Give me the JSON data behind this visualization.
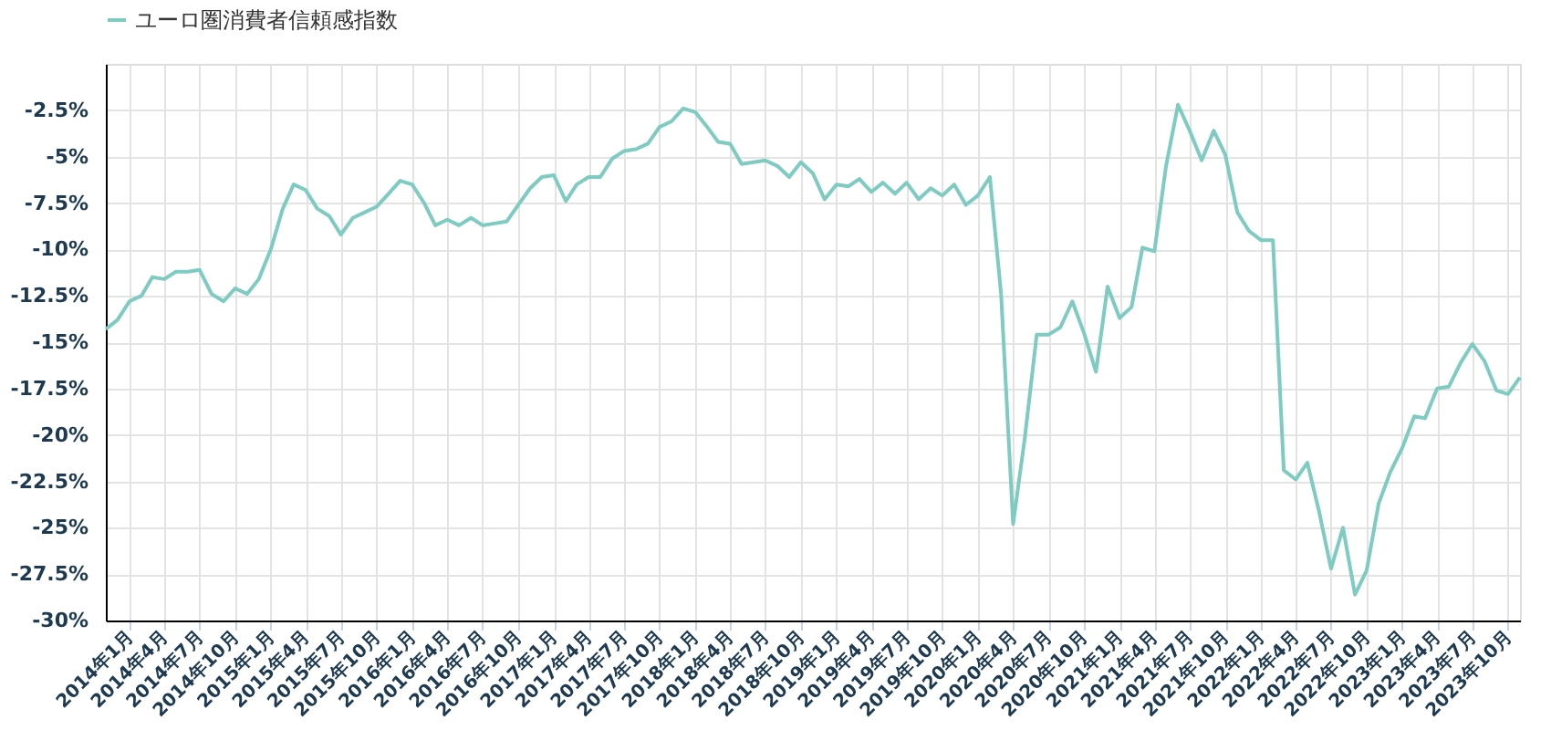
{
  "chart_data": {
    "type": "line",
    "x": [
      "2013-11",
      "2013-12",
      "2014-01",
      "2014-02",
      "2014-03",
      "2014-04",
      "2014-05",
      "2014-06",
      "2014-07",
      "2014-08",
      "2014-09",
      "2014-10",
      "2014-11",
      "2014-12",
      "2015-01",
      "2015-02",
      "2015-03",
      "2015-04",
      "2015-05",
      "2015-06",
      "2015-07",
      "2015-08",
      "2015-09",
      "2015-10",
      "2015-11",
      "2015-12",
      "2016-01",
      "2016-02",
      "2016-03",
      "2016-04",
      "2016-05",
      "2016-06",
      "2016-07",
      "2016-08",
      "2016-09",
      "2016-10",
      "2016-11",
      "2016-12",
      "2017-01",
      "2017-02",
      "2017-03",
      "2017-04",
      "2017-05",
      "2017-06",
      "2017-07",
      "2017-08",
      "2017-09",
      "2017-10",
      "2017-11",
      "2017-12",
      "2018-01",
      "2018-02",
      "2018-03",
      "2018-04",
      "2018-05",
      "2018-06",
      "2018-07",
      "2018-08",
      "2018-09",
      "2018-10",
      "2018-11",
      "2018-12",
      "2019-01",
      "2019-02",
      "2019-03",
      "2019-04",
      "2019-05",
      "2019-06",
      "2019-07",
      "2019-08",
      "2019-09",
      "2019-10",
      "2019-11",
      "2019-12",
      "2020-01",
      "2020-02",
      "2020-03",
      "2020-04",
      "2020-05",
      "2020-06",
      "2020-07",
      "2020-08",
      "2020-09",
      "2020-10",
      "2020-11",
      "2020-12",
      "2021-01",
      "2021-02",
      "2021-03",
      "2021-04",
      "2021-05",
      "2021-06",
      "2021-07",
      "2021-08",
      "2021-09",
      "2021-10",
      "2021-11",
      "2021-12",
      "2022-01",
      "2022-02",
      "2022-03",
      "2022-04",
      "2022-05",
      "2022-06",
      "2022-07",
      "2022-08",
      "2022-09",
      "2022-10",
      "2022-11",
      "2022-12",
      "2023-01",
      "2023-02",
      "2023-03",
      "2023-04",
      "2023-05",
      "2023-06",
      "2023-07",
      "2023-08",
      "2023-09",
      "2023-10",
      "2023-11"
    ],
    "series": [
      {
        "name": "ユーロ圏消費者信頼感指数",
        "color": "#7ecbc1",
        "values": [
          -14.3,
          -13.8,
          -12.8,
          -12.5,
          -11.5,
          -11.6,
          -11.2,
          -11.2,
          -11.1,
          -12.4,
          -12.8,
          -12.1,
          -12.4,
          -11.6,
          -10.0,
          -7.8,
          -6.5,
          -6.8,
          -7.8,
          -8.2,
          -9.2,
          -8.3,
          -8.0,
          -7.7,
          -7.0,
          -6.3,
          -6.5,
          -7.5,
          -8.7,
          -8.4,
          -8.7,
          -8.3,
          -8.7,
          -8.6,
          -8.5,
          -7.6,
          -6.7,
          -6.1,
          -6.0,
          -7.4,
          -6.5,
          -6.1,
          -6.1,
          -5.1,
          -4.7,
          -4.6,
          -4.3,
          -3.4,
          -3.1,
          -2.4,
          -2.6,
          -3.4,
          -4.2,
          -4.3,
          -5.4,
          -5.3,
          -5.2,
          -5.5,
          -6.1,
          -5.3,
          -5.9,
          -7.3,
          -6.5,
          -6.6,
          -6.2,
          -6.9,
          -6.4,
          -7.0,
          -6.4,
          -7.3,
          -6.7,
          -7.1,
          -6.5,
          -7.6,
          -7.1,
          -6.1,
          -12.4,
          -24.8,
          -20.2,
          -14.6,
          -14.6,
          -14.2,
          -12.8,
          -14.5,
          -16.6,
          -12.0,
          -13.7,
          -13.1,
          -9.9,
          -10.1,
          -5.5,
          -2.2,
          -3.6,
          -5.2,
          -3.6,
          -4.9,
          -8.0,
          -9.0,
          -9.5,
          -9.5,
          -21.9,
          -22.4,
          -21.5,
          -24.2,
          -27.2,
          -25.0,
          -28.6,
          -27.3,
          -23.7,
          -22.0,
          -20.7,
          -19.0,
          -19.1,
          -17.5,
          -17.4,
          -16.1,
          -15.1,
          -16.0,
          -17.6,
          -17.8,
          -16.9
        ]
      }
    ],
    "xlim": [
      "2013-11",
      "2023-11"
    ],
    "xticks": [
      {
        "value": "2014-01",
        "label": "2014年1月"
      },
      {
        "value": "2014-04",
        "label": "2014年4月"
      },
      {
        "value": "2014-07",
        "label": "2014年7月"
      },
      {
        "value": "2014-10",
        "label": "2014年10月"
      },
      {
        "value": "2015-01",
        "label": "2015年1月"
      },
      {
        "value": "2015-04",
        "label": "2015年4月"
      },
      {
        "value": "2015-07",
        "label": "2015年7月"
      },
      {
        "value": "2015-10",
        "label": "2015年10月"
      },
      {
        "value": "2016-01",
        "label": "2016年1月"
      },
      {
        "value": "2016-04",
        "label": "2016年4月"
      },
      {
        "value": "2016-07",
        "label": "2016年7月"
      },
      {
        "value": "2016-10",
        "label": "2016年10月"
      },
      {
        "value": "2017-01",
        "label": "2017年1月"
      },
      {
        "value": "2017-04",
        "label": "2017年4月"
      },
      {
        "value": "2017-07",
        "label": "2017年7月"
      },
      {
        "value": "2017-10",
        "label": "2017年10月"
      },
      {
        "value": "2018-01",
        "label": "2018年1月"
      },
      {
        "value": "2018-04",
        "label": "2018年4月"
      },
      {
        "value": "2018-07",
        "label": "2018年7月"
      },
      {
        "value": "2018-10",
        "label": "2018年10月"
      },
      {
        "value": "2019-01",
        "label": "2019年1月"
      },
      {
        "value": "2019-04",
        "label": "2019年4月"
      },
      {
        "value": "2019-07",
        "label": "2019年7月"
      },
      {
        "value": "2019-10",
        "label": "2019年10月"
      },
      {
        "value": "2020-01",
        "label": "2020年1月"
      },
      {
        "value": "2020-04",
        "label": "2020年4月"
      },
      {
        "value": "2020-07",
        "label": "2020年7月"
      },
      {
        "value": "2020-10",
        "label": "2020年10月"
      },
      {
        "value": "2021-01",
        "label": "2021年1月"
      },
      {
        "value": "2021-04",
        "label": "2021年4月"
      },
      {
        "value": "2021-07",
        "label": "2021年7月"
      },
      {
        "value": "2021-10",
        "label": "2021年10月"
      },
      {
        "value": "2022-01",
        "label": "2022年1月"
      },
      {
        "value": "2022-04",
        "label": "2022年4月"
      },
      {
        "value": "2022-07",
        "label": "2022年7月"
      },
      {
        "value": "2022-10",
        "label": "2022年10月"
      },
      {
        "value": "2023-01",
        "label": "2023年1月"
      },
      {
        "value": "2023-04",
        "label": "2023年4月"
      },
      {
        "value": "2023-07",
        "label": "2023年7月"
      },
      {
        "value": "2023-10",
        "label": "2023年10月"
      }
    ],
    "ylim": [
      -30,
      0
    ],
    "yticks": [
      {
        "value": -30,
        "label": "-30%"
      },
      {
        "value": -27.5,
        "label": "-27.5%"
      },
      {
        "value": -25,
        "label": "-25%"
      },
      {
        "value": -22.5,
        "label": "-22.5%"
      },
      {
        "value": -20,
        "label": "-20%"
      },
      {
        "value": -17.5,
        "label": "-17.5%"
      },
      {
        "value": -15,
        "label": "-15%"
      },
      {
        "value": -12.5,
        "label": "-12.5%"
      },
      {
        "value": -10,
        "label": "-10%"
      },
      {
        "value": -7.5,
        "label": "-7.5%"
      },
      {
        "value": -5,
        "label": "-5%"
      },
      {
        "value": -2.5,
        "label": "-2.5%"
      }
    ],
    "grid": true,
    "legend": "top",
    "marker": "none",
    "line_style": "solid"
  }
}
